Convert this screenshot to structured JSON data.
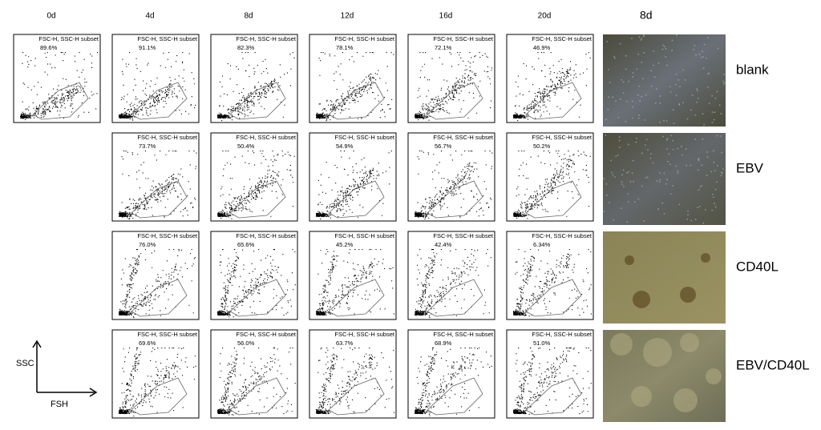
{
  "column_headers": [
    "0d",
    "4d",
    "8d",
    "12d",
    "16d",
    "20d"
  ],
  "photo_header": "8d",
  "axis_labels": {
    "y": "SSC",
    "x": "FSH"
  },
  "rows": [
    {
      "label": "blank",
      "panels": [
        {
          "gate": "FSC-H, SSC-H subset",
          "percent": "89.6%"
        },
        {
          "gate": "FSC-H, SSC-H subset",
          "percent": "91.1%"
        },
        {
          "gate": "FSC-H, SSC-H subset",
          "percent": "82.3%"
        },
        {
          "gate": "FSC-H, SSC-H subset",
          "percent": "78.1%"
        },
        {
          "gate": "FSC-H, SSC-H subset",
          "percent": "72.1%"
        },
        {
          "gate": "FSC-H, SSC-H subset",
          "percent": "46.9%"
        }
      ]
    },
    {
      "label": "EBV",
      "panels": [
        {
          "gate": "FSC-H, SSC-H subset",
          "percent": "73.7%"
        },
        {
          "gate": "FSC-H, SSC-H subset",
          "percent": "50.4%"
        },
        {
          "gate": "FSC-H, SSC-H subset",
          "percent": "54.9%"
        },
        {
          "gate": "FSC-H, SSC-H subset",
          "percent": "56.7%"
        },
        {
          "gate": "FSC-H, SSC-H subset",
          "percent": "50.2%"
        }
      ]
    },
    {
      "label": "CD40L",
      "panels": [
        {
          "gate": "FSC-H, SSC-H subset",
          "percent": "76.0%"
        },
        {
          "gate": "FSC-H, SSC-H subset",
          "percent": "65.6%"
        },
        {
          "gate": "FSC-H, SSC-H subset",
          "percent": "45.2%"
        },
        {
          "gate": "FSC-H, SSC-H subset",
          "percent": "42.4%"
        },
        {
          "gate": "FSC-H, SSC-H subset",
          "percent": "6.34%"
        }
      ]
    },
    {
      "label": "EBV/CD40L",
      "panels": [
        {
          "gate": "FSC-H, SSC-H subset",
          "percent": "69.6%"
        },
        {
          "gate": "FSC-H, SSC-H subset",
          "percent": "56.0%"
        },
        {
          "gate": "FSC-H, SSC-H subset",
          "percent": "63.7%"
        },
        {
          "gate": "FSC-H, SSC-H subset",
          "percent": "68.9%"
        },
        {
          "gate": "FSC-H, SSC-H subset",
          "percent": "51.0%"
        }
      ]
    }
  ]
}
